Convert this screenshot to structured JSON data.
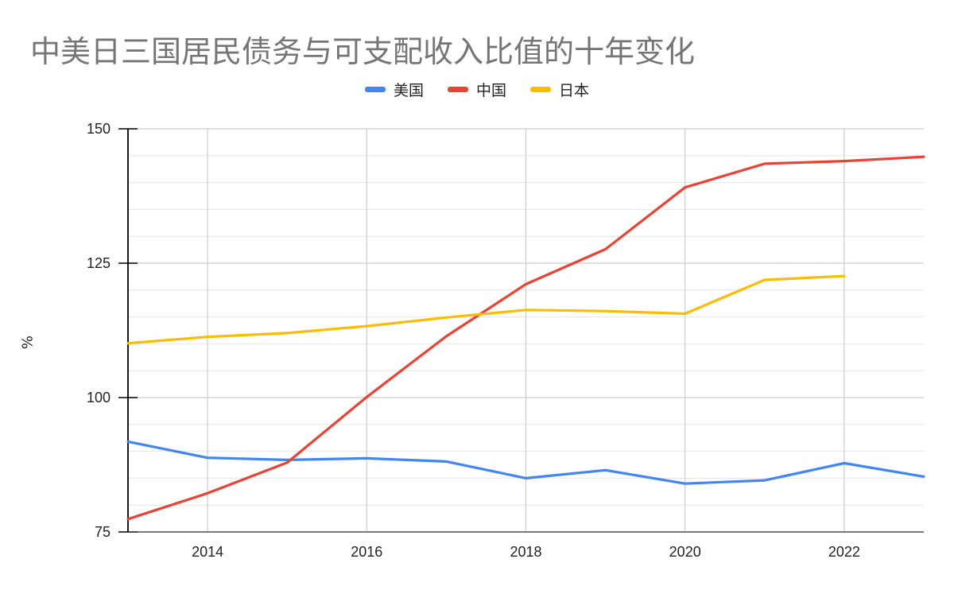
{
  "chart_data": {
    "type": "line",
    "title": "中美日三国居民债务与可支配收入比值的十年变化",
    "ylabel": "%",
    "xlabel": "",
    "xlim": [
      2013,
      2023
    ],
    "ylim": [
      75,
      150
    ],
    "y_ticks": [
      75,
      100,
      125,
      150
    ],
    "x_ticks": [
      2014,
      2016,
      2018,
      2020,
      2022
    ],
    "grid": true,
    "legend_position": "top-center",
    "series": [
      {
        "name": "美国",
        "color": "#4285f4",
        "x": [
          2013,
          2014,
          2015,
          2016,
          2017,
          2018,
          2019,
          2020,
          2021,
          2022,
          2023
        ],
        "values": [
          91.8,
          88.8,
          88.4,
          88.7,
          88.1,
          85.0,
          86.5,
          84.0,
          84.6,
          87.8,
          85.3
        ]
      },
      {
        "name": "中国",
        "color": "#ea4335",
        "x": [
          2013,
          2014,
          2015,
          2016,
          2017,
          2018,
          2019,
          2020,
          2021,
          2022,
          2023
        ],
        "values": [
          77.4,
          82.2,
          87.9,
          100.1,
          111.4,
          121.1,
          127.6,
          139.1,
          143.5,
          144.0,
          144.8
        ]
      },
      {
        "name": "日本",
        "color": "#fbbc04",
        "x": [
          2013,
          2014,
          2015,
          2016,
          2017,
          2018,
          2019,
          2020,
          2021,
          2022
        ],
        "values": [
          110.1,
          111.3,
          112.0,
          113.3,
          114.9,
          116.3,
          116.1,
          115.6,
          121.9,
          122.6
        ]
      }
    ]
  }
}
